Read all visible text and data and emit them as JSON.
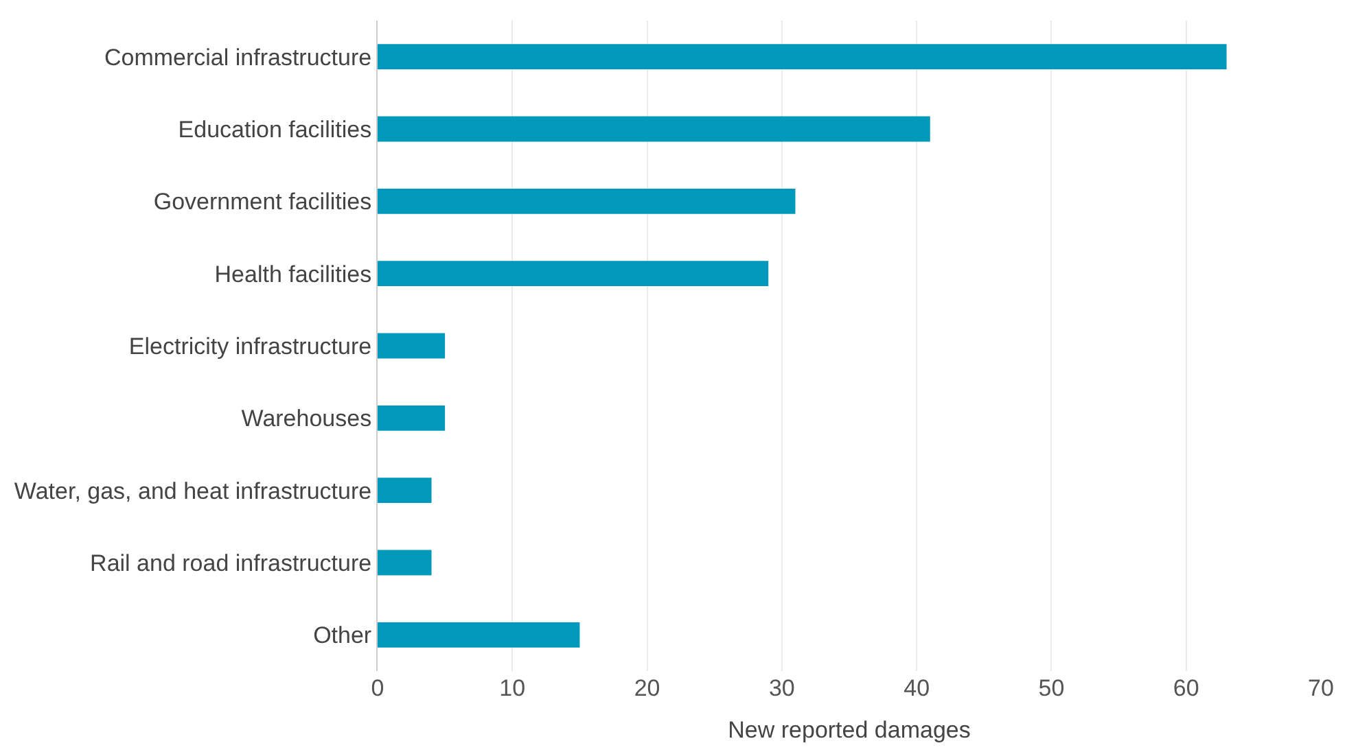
{
  "chart_data": {
    "type": "bar",
    "orientation": "horizontal",
    "categories": [
      "Commercial infrastructure",
      "Education facilities",
      "Government facilities",
      "Health facilities",
      "Electricity infrastructure",
      "Warehouses",
      "Water, gas, and heat infrastructure",
      "Rail and road infrastructure",
      "Other"
    ],
    "values": [
      63,
      41,
      31,
      29,
      5,
      5,
      4,
      4,
      15
    ],
    "color": "#0099bc",
    "xlabel": "New reported damages",
    "xlim": [
      0,
      70
    ],
    "xticks": [
      0,
      10,
      20,
      30,
      40,
      50,
      60,
      70
    ],
    "grid": "x",
    "legend": false
  }
}
